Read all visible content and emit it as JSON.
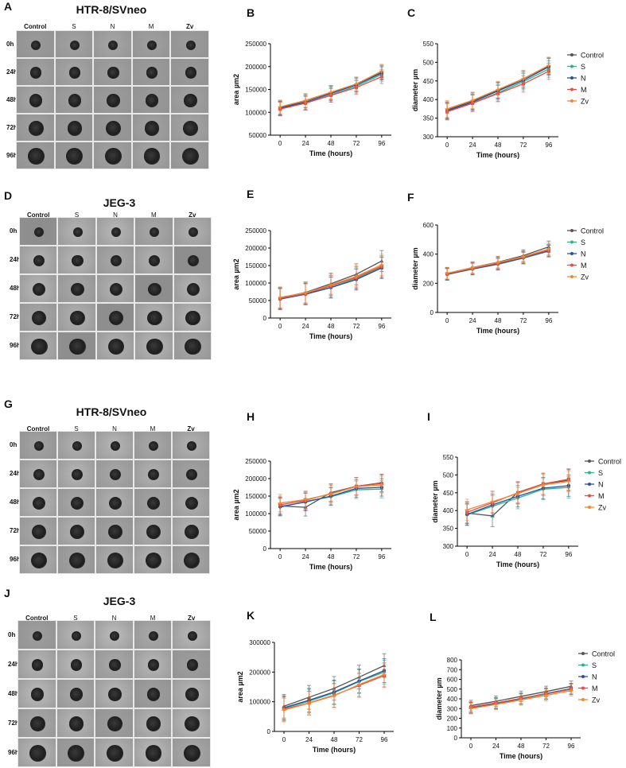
{
  "panels": {
    "A": {
      "letter": "A",
      "title": "HTR-8/SVneo",
      "columns": [
        "Control",
        "S",
        "N",
        "M",
        "Zv"
      ],
      "rows": [
        "0h",
        "24h",
        "48h",
        "72h",
        "96h"
      ]
    },
    "D": {
      "letter": "D",
      "title": "JEG-3",
      "columns": [
        "Control",
        "S",
        "N",
        "M",
        "Zv"
      ],
      "rows": [
        "0h",
        "24h",
        "48h",
        "72h",
        "96h"
      ]
    },
    "G": {
      "letter": "G",
      "title": "HTR-8/SVneo",
      "columns": [
        "Control",
        "S",
        "N",
        "M",
        "Zv"
      ],
      "rows": [
        "0h",
        "24h",
        "48h",
        "72h",
        "96h"
      ]
    },
    "J": {
      "letter": "J",
      "title": "JEG-3",
      "columns": [
        "Control",
        "S",
        "N",
        "M",
        "Zv"
      ],
      "rows": [
        "0h",
        "24h",
        "48h",
        "72h",
        "96h"
      ]
    }
  },
  "colors": {
    "Control": "#555555",
    "S": "#2bb38f",
    "N": "#2a4f9e",
    "M": "#e84a4a",
    "Zv": "#f08a2c"
  },
  "chart_data": [
    {
      "id": "B",
      "letter": "B",
      "type": "line",
      "xlabel": "Time (hours)",
      "ylabel": "area µm2",
      "x": [
        0,
        24,
        48,
        72,
        96
      ],
      "ylim": [
        50000,
        250000
      ],
      "yticks": [
        50000,
        100000,
        150000,
        200000,
        250000
      ],
      "legend": false,
      "series": [
        {
          "name": "Control",
          "values": [
            110000,
            125000,
            143000,
            162000,
            188000
          ],
          "err": 15000
        },
        {
          "name": "S",
          "values": [
            108000,
            120000,
            138000,
            157000,
            183000
          ],
          "err": 15000
        },
        {
          "name": "N",
          "values": [
            109000,
            122000,
            141000,
            160000,
            186000
          ],
          "err": 15000
        },
        {
          "name": "M",
          "values": [
            107000,
            120000,
            137000,
            154000,
            178000
          ],
          "err": 15000
        },
        {
          "name": "Zv",
          "values": [
            112000,
            126000,
            144000,
            162000,
            190000
          ],
          "err": 15000
        }
      ]
    },
    {
      "id": "C",
      "letter": "C",
      "type": "line",
      "xlabel": "Time (hours)",
      "ylabel": "diameter µm",
      "x": [
        0,
        24,
        48,
        72,
        96
      ],
      "ylim": [
        300,
        550
      ],
      "yticks": [
        300,
        350,
        400,
        450,
        500,
        550
      ],
      "legend": true,
      "series": [
        {
          "name": "Control",
          "values": [
            372,
            396,
            425,
            456,
            490
          ],
          "err": 22
        },
        {
          "name": "S",
          "values": [
            368,
            390,
            418,
            448,
            482
          ],
          "err": 22
        },
        {
          "name": "N",
          "values": [
            370,
            393,
            423,
            452,
            488
          ],
          "err": 22
        },
        {
          "name": "M",
          "values": [
            367,
            390,
            416,
            442,
            476
          ],
          "err": 22
        },
        {
          "name": "Zv",
          "values": [
            375,
            398,
            427,
            456,
            492
          ],
          "err": 22
        }
      ]
    },
    {
      "id": "E",
      "letter": "E",
      "type": "line",
      "xlabel": "Time (hours)",
      "ylabel": "area µm2",
      "x": [
        0,
        24,
        48,
        72,
        96
      ],
      "ylim": [
        0,
        250000
      ],
      "yticks": [
        0,
        50000,
        100000,
        150000,
        200000,
        250000
      ],
      "legend": false,
      "series": [
        {
          "name": "Control",
          "values": [
            58000,
            73000,
            98000,
            125000,
            163000
          ],
          "err": 30000
        },
        {
          "name": "S",
          "values": [
            55000,
            68000,
            88000,
            113000,
            145000
          ],
          "err": 30000
        },
        {
          "name": "N",
          "values": [
            54000,
            68000,
            87000,
            110000,
            143000
          ],
          "err": 30000
        },
        {
          "name": "M",
          "values": [
            56000,
            70000,
            92000,
            116000,
            148000
          ],
          "err": 30000
        },
        {
          "name": "Zv",
          "values": [
            59000,
            72000,
            95000,
            119000,
            152000
          ],
          "err": 30000
        }
      ]
    },
    {
      "id": "F",
      "letter": "F",
      "type": "line",
      "xlabel": "Time (hours)",
      "ylabel": "diameter µm",
      "x": [
        0,
        24,
        48,
        72,
        96
      ],
      "ylim": [
        0,
        600
      ],
      "yticks": [
        0,
        200,
        400,
        600
      ],
      "legend": true,
      "series": [
        {
          "name": "Control",
          "values": [
            268,
            308,
            345,
            390,
            450
          ],
          "err": 40
        },
        {
          "name": "S",
          "values": [
            260,
            297,
            330,
            372,
            420
          ],
          "err": 40
        },
        {
          "name": "N",
          "values": [
            262,
            299,
            333,
            375,
            423
          ],
          "err": 40
        },
        {
          "name": "M",
          "values": [
            265,
            303,
            338,
            380,
            428
          ],
          "err": 40
        },
        {
          "name": "Zv",
          "values": [
            270,
            307,
            343,
            383,
            435
          ],
          "err": 40
        }
      ]
    },
    {
      "id": "H",
      "letter": "H",
      "type": "line",
      "xlabel": "Time (hours)",
      "ylabel": "area µm2",
      "x": [
        0,
        24,
        48,
        72,
        96
      ],
      "ylim": [
        0,
        250000
      ],
      "yticks": [
        0,
        50000,
        100000,
        150000,
        200000,
        250000
      ],
      "legend": false,
      "series": [
        {
          "name": "Control",
          "values": [
            122000,
            118000,
            160000,
            178000,
            188000
          ],
          "err": 25000
        },
        {
          "name": "S",
          "values": [
            118000,
            135000,
            148000,
            168000,
            170000
          ],
          "err": 25000
        },
        {
          "name": "N",
          "values": [
            120000,
            133000,
            150000,
            172000,
            175000
          ],
          "err": 25000
        },
        {
          "name": "M",
          "values": [
            125000,
            138000,
            157000,
            178000,
            186000
          ],
          "err": 25000
        },
        {
          "name": "Zv",
          "values": [
            130000,
            140000,
            156000,
            177000,
            182000
          ],
          "err": 25000
        }
      ]
    },
    {
      "id": "I",
      "letter": "I",
      "type": "line",
      "xlabel": "Time (hours)",
      "ylabel": "diameter µm",
      "x": [
        0,
        24,
        48,
        72,
        96
      ],
      "ylim": [
        300,
        550
      ],
      "yticks": [
        300,
        350,
        400,
        450,
        500,
        550
      ],
      "legend": true,
      "series": [
        {
          "name": "Control",
          "values": [
            393,
            385,
            451,
            475,
            485
          ],
          "err": 30
        },
        {
          "name": "S",
          "values": [
            388,
            412,
            435,
            460,
            465
          ],
          "err": 30
        },
        {
          "name": "N",
          "values": [
            389,
            416,
            440,
            463,
            470
          ],
          "err": 30
        },
        {
          "name": "M",
          "values": [
            395,
            422,
            450,
            475,
            488
          ],
          "err": 30
        },
        {
          "name": "Zv",
          "values": [
            402,
            425,
            448,
            472,
            482
          ],
          "err": 30
        }
      ]
    },
    {
      "id": "K",
      "letter": "K",
      "type": "line",
      "xlabel": "Time (hours)",
      "ylabel": "area µm2",
      "x": [
        0,
        24,
        48,
        72,
        96
      ],
      "ylim": [
        0,
        300000
      ],
      "yticks": [
        0,
        100000,
        200000,
        300000
      ],
      "legend": false,
      "series": [
        {
          "name": "Control",
          "values": [
            85000,
            115000,
            145000,
            183000,
            222000
          ],
          "err": 40000
        },
        {
          "name": "S",
          "values": [
            78000,
            102000,
            130000,
            168000,
            200000
          ],
          "err": 40000
        },
        {
          "name": "N",
          "values": [
            80000,
            105000,
            133000,
            170000,
            205000
          ],
          "err": 40000
        },
        {
          "name": "M",
          "values": [
            75000,
            96000,
            122000,
            155000,
            188000
          ],
          "err": 40000
        },
        {
          "name": "Zv",
          "values": [
            72000,
            95000,
            120000,
            158000,
            192000
          ],
          "err": 40000
        }
      ]
    },
    {
      "id": "L",
      "letter": "L",
      "type": "line",
      "xlabel": "Time (hours)",
      "ylabel": "diameter µm",
      "x": [
        0,
        24,
        48,
        72,
        96
      ],
      "ylim": [
        0,
        800
      ],
      "yticks": [
        0,
        100,
        200,
        300,
        400,
        500,
        600,
        700,
        800
      ],
      "legend": true,
      "series": [
        {
          "name": "Control",
          "values": [
            330,
            375,
            425,
            475,
            528
          ],
          "err": 55
        },
        {
          "name": "S",
          "values": [
            305,
            350,
            398,
            448,
            498
          ],
          "err": 55
        },
        {
          "name": "N",
          "values": [
            310,
            355,
            402,
            455,
            505
          ],
          "err": 55
        },
        {
          "name": "M",
          "values": [
            315,
            358,
            405,
            452,
            500
          ],
          "err": 55
        },
        {
          "name": "Zv",
          "values": [
            300,
            342,
            388,
            435,
            485
          ],
          "err": 55
        }
      ]
    }
  ]
}
